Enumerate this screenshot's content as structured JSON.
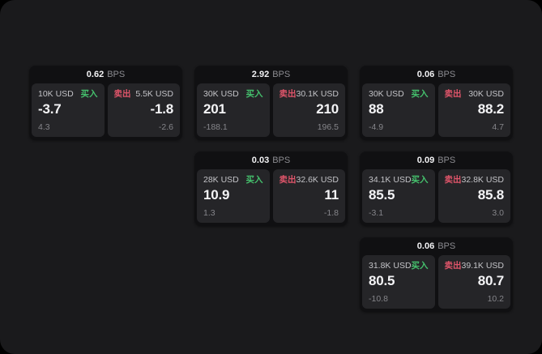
{
  "labels": {
    "buy": "买入",
    "sell": "卖出",
    "bps_unit": "BPS"
  },
  "colors": {
    "background": "#000000",
    "panel": "#1a1a1c",
    "card": "#101012",
    "tile": "#252528",
    "buy_green": "#45c16d",
    "sell_red": "#e0556a",
    "value_text": "#f4f4f6",
    "size_text": "#c3c3c7",
    "muted_text": "#85858a"
  },
  "cards": [
    {
      "bps": "0.62",
      "buy": {
        "size": "10K USD",
        "value": "-3.7",
        "delta": "4.3"
      },
      "sell": {
        "size": "5.5K USD",
        "value": "-1.8",
        "delta": "-2.6"
      }
    },
    {
      "bps": "2.92",
      "buy": {
        "size": "30K USD",
        "value": "201",
        "delta": "-188.1"
      },
      "sell": {
        "size": "30.1K USD",
        "value": "210",
        "delta": "196.5"
      }
    },
    {
      "bps": "0.06",
      "buy": {
        "size": "30K USD",
        "value": "88",
        "delta": "-4.9"
      },
      "sell": {
        "size": "30K USD",
        "value": "88.2",
        "delta": "4.7"
      }
    },
    {
      "bps": "0.03",
      "buy": {
        "size": "28K USD",
        "value": "10.9",
        "delta": "1.3"
      },
      "sell": {
        "size": "32.6K USD",
        "value": "11",
        "delta": "-1.8"
      }
    },
    {
      "bps": "0.09",
      "buy": {
        "size": "34.1K USD",
        "value": "85.5",
        "delta": "-3.1"
      },
      "sell": {
        "size": "32.8K USD",
        "value": "85.8",
        "delta": "3.0"
      }
    },
    {
      "bps": "0.06",
      "buy": {
        "size": "31.8K USD",
        "value": "80.5",
        "delta": "-10.8"
      },
      "sell": {
        "size": "39.1K USD",
        "value": "80.7",
        "delta": "10.2"
      }
    }
  ]
}
